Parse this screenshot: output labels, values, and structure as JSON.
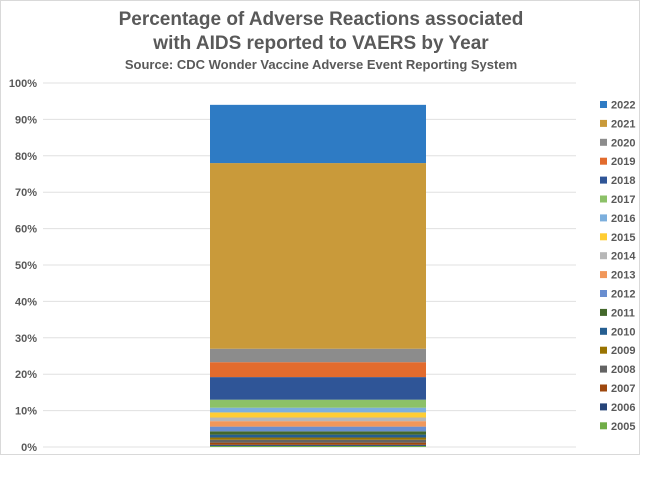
{
  "title": "Percentage of Adverse Reactions associated",
  "title_line2": "with AIDS reported to VAERS by Year",
  "subtitle": "Source: CDC Wonder Vaccine Adverse Event Reporting System",
  "chart_data": {
    "type": "bar",
    "stacked": true,
    "title": "Percentage of Adverse Reactions associated with AIDS reported to VAERS by Year",
    "subtitle": "Source: CDC Wonder Vaccine Adverse Event Reporting System",
    "ylim": [
      0,
      100
    ],
    "yticks": [
      "0%",
      "10%",
      "20%",
      "30%",
      "40%",
      "50%",
      "60%",
      "70%",
      "80%",
      "90%",
      "100%"
    ],
    "grid": true,
    "legend_position": "right",
    "series": [
      {
        "name": "2005",
        "value": 0.3,
        "color": "#70ad47"
      },
      {
        "name": "2006",
        "value": 0.3,
        "color": "#264478"
      },
      {
        "name": "2007",
        "value": 0.6,
        "color": "#9e480e"
      },
      {
        "name": "2008",
        "value": 0.8,
        "color": "#636363"
      },
      {
        "name": "2009",
        "value": 0.6,
        "color": "#997300"
      },
      {
        "name": "2010",
        "value": 0.8,
        "color": "#255e91"
      },
      {
        "name": "2011",
        "value": 0.9,
        "color": "#43682b"
      },
      {
        "name": "2012",
        "value": 1.3,
        "color": "#698ed0"
      },
      {
        "name": "2013",
        "value": 1.5,
        "color": "#f1975a"
      },
      {
        "name": "2014",
        "value": 1.0,
        "color": "#b7b7b7"
      },
      {
        "name": "2015",
        "value": 1.4,
        "color": "#ffcd33"
      },
      {
        "name": "2016",
        "value": 1.3,
        "color": "#7cafdd"
      },
      {
        "name": "2017",
        "value": 2.2,
        "color": "#8cc168"
      },
      {
        "name": "2018",
        "value": 6.2,
        "color": "#2f5597"
      },
      {
        "name": "2019",
        "value": 4.1,
        "color": "#e26b2d"
      },
      {
        "name": "2020",
        "value": 3.7,
        "color": "#8c8c8c"
      },
      {
        "name": "2021",
        "value": 51.0,
        "color": "#c99a3a"
      },
      {
        "name": "2022",
        "value": 16.0,
        "color": "#2e7bc4"
      }
    ]
  }
}
